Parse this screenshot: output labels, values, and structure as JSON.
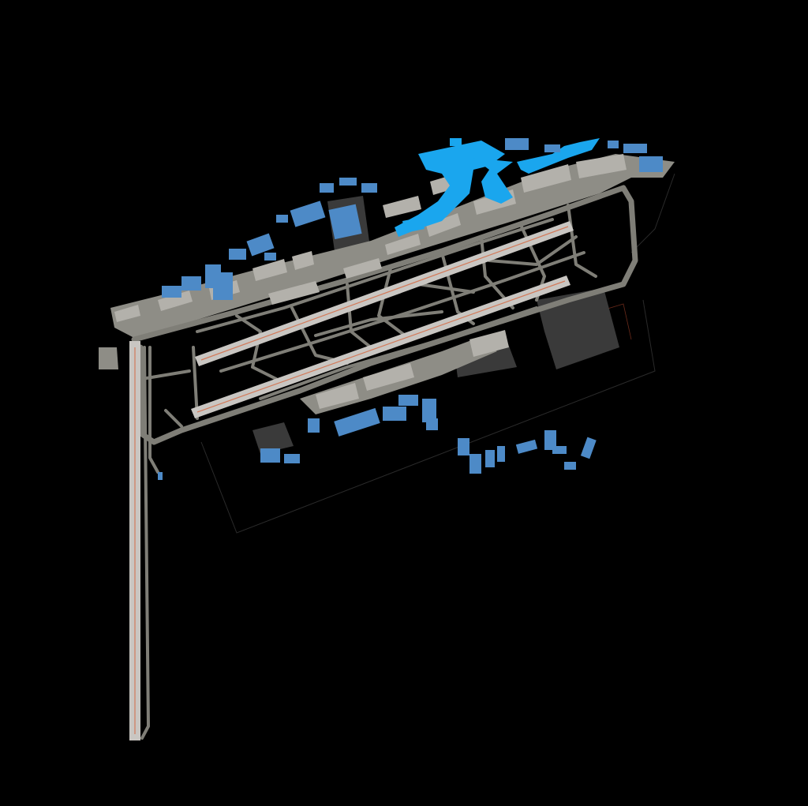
{
  "map": {
    "colors": {
      "background": "#000000",
      "runway": "#c9c6c2",
      "runway_markings": "#d27a5a",
      "taxiway": "#7f7e77",
      "apron": "#8e8d86",
      "building": "#4d8ac7",
      "terminal": "#1aa6ee",
      "cargo_area": "#3a3a3a"
    }
  }
}
